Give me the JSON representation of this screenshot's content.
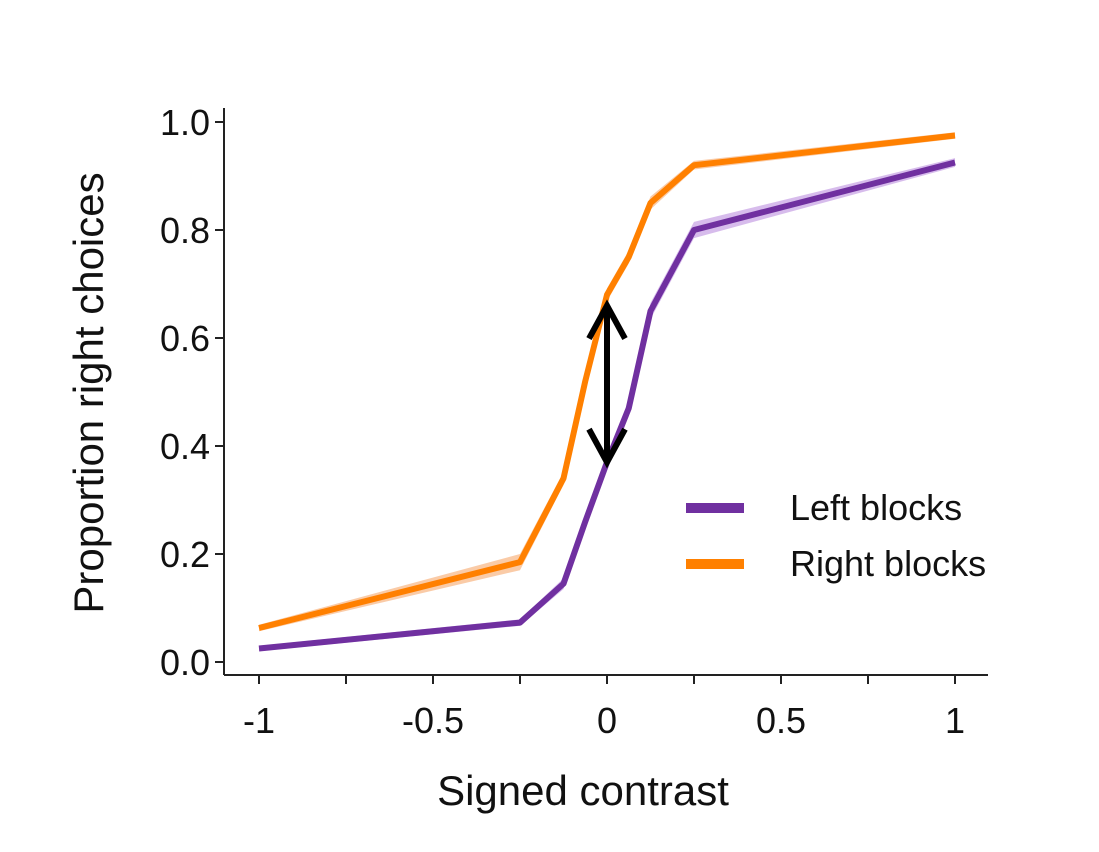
{
  "chart_data": {
    "type": "line",
    "title": "",
    "xlabel": "Signed contrast",
    "ylabel": "Proportion right choices",
    "xlim": [
      -1.1,
      1.1
    ],
    "ylim": [
      -0.03,
      1.03
    ],
    "x_ticks": [
      -1,
      -0.75,
      -0.5,
      -0.25,
      0,
      0.25,
      0.5,
      0.75,
      1
    ],
    "x_tick_labels": [
      {
        "value": -1,
        "label": "-1"
      },
      {
        "value": -0.5,
        "label": "-0.5"
      },
      {
        "value": 0,
        "label": "0"
      },
      {
        "value": 0.5,
        "label": "0.5"
      },
      {
        "value": 1,
        "label": "1"
      }
    ],
    "y_ticks": [
      {
        "value": 0.0,
        "label": "0.0"
      },
      {
        "value": 0.2,
        "label": "0.2"
      },
      {
        "value": 0.4,
        "label": "0.4"
      },
      {
        "value": 0.6,
        "label": "0.6"
      },
      {
        "value": 0.8,
        "label": "0.8"
      },
      {
        "value": 1.0,
        "label": "1.0"
      }
    ],
    "grid": false,
    "legend_position": "bottom-right",
    "series": [
      {
        "name": "Left blocks",
        "color": "#7030a0",
        "band_color": "#c9a6e6",
        "x": [
          -1,
          -0.25,
          -0.125,
          -0.0625,
          0,
          0.0625,
          0.125,
          0.25,
          1
        ],
        "y": [
          0.025,
          0.073,
          0.145,
          0.26,
          0.37,
          0.47,
          0.65,
          0.8,
          0.925
        ],
        "band": [
          0.005,
          0.006,
          0.01,
          0.012,
          0.015,
          0.015,
          0.015,
          0.015,
          0.008
        ]
      },
      {
        "name": "Right blocks",
        "color": "#ff8000",
        "band_color": "#f8b98a",
        "x": [
          -1,
          -0.25,
          -0.125,
          -0.0625,
          0,
          0.0625,
          0.125,
          0.25,
          1
        ],
        "y": [
          0.063,
          0.185,
          0.34,
          0.52,
          0.68,
          0.75,
          0.85,
          0.92,
          0.975
        ],
        "band": [
          0.006,
          0.015,
          0.012,
          0.012,
          0.012,
          0.012,
          0.012,
          0.008,
          0.006
        ]
      }
    ],
    "annotations": [
      {
        "type": "double-arrow",
        "x": 0,
        "y_from": 0.37,
        "y_to": 0.66
      }
    ]
  }
}
